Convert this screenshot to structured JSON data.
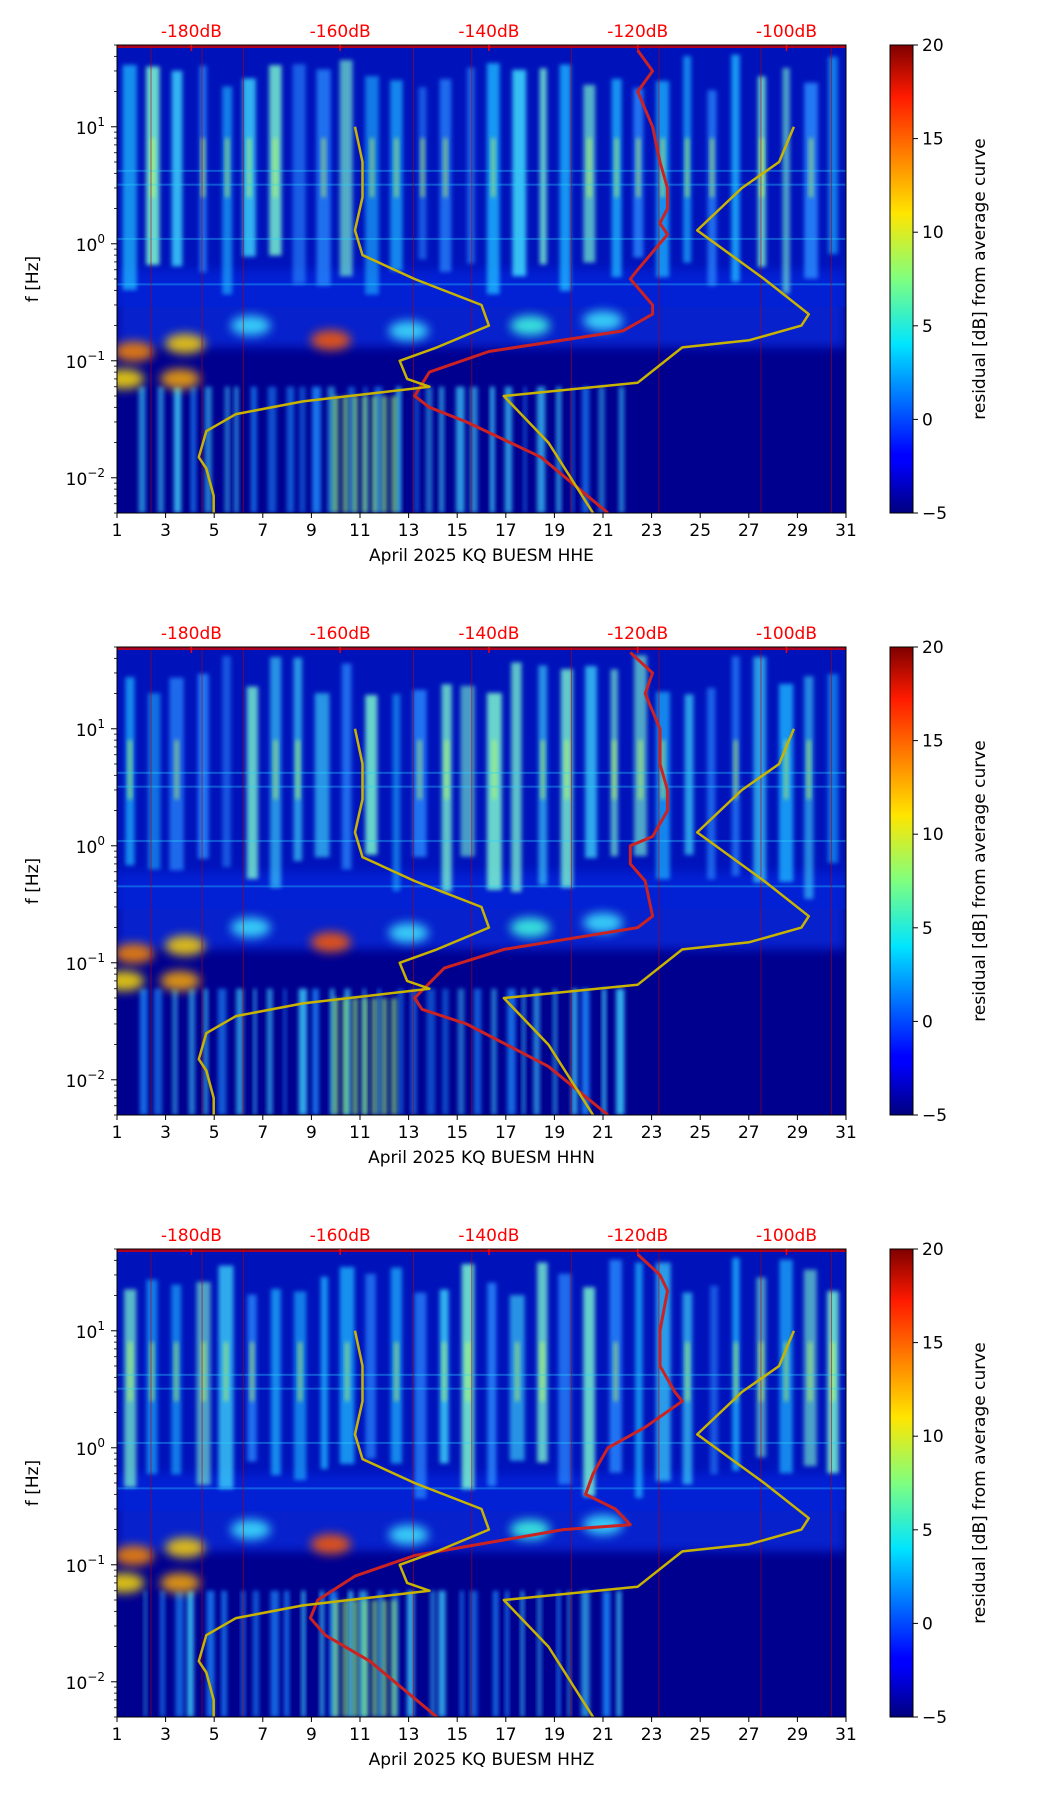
{
  "chart_data": [
    {
      "type": "heatmap",
      "xlabel": "April 2025 KQ BUESM  HHE",
      "ylabel": "f [Hz]",
      "x_ticks": [
        "1",
        "3",
        "5",
        "7",
        "9",
        "11",
        "13",
        "15",
        "17",
        "19",
        "21",
        "23",
        "25",
        "27",
        "29",
        "31"
      ],
      "xlim": [
        1,
        31
      ],
      "y_scale": "log",
      "y_ticks": [
        "10^-2",
        "10^-1",
        "10^0",
        "10^1"
      ],
      "ylim": [
        0.005,
        50
      ],
      "top_axis_ticks": [
        "-180dB",
        "-160dB",
        "-140dB",
        "-120dB",
        "-100dB"
      ],
      "colorbar": {
        "label": "residual [dB] from average curve",
        "ticks": [
          "-5",
          "0",
          "5",
          "10",
          "15",
          "20"
        ],
        "range": [
          -5,
          20
        ]
      },
      "curves": [
        {
          "color": "#cc2222",
          "db_at_f": [
            [
              -120,
              45
            ],
            [
              -118,
              30
            ],
            [
              -120,
              20
            ],
            [
              -118,
              10
            ],
            [
              -117,
              5
            ],
            [
              -116,
              3
            ],
            [
              -116,
              2
            ],
            [
              -117,
              1.5
            ],
            [
              -116,
              1.2
            ],
            [
              -120,
              0.6
            ],
            [
              -121,
              0.5
            ],
            [
              -118,
              0.3
            ],
            [
              -118,
              0.25
            ],
            [
              -122,
              0.18
            ],
            [
              -140,
              0.12
            ],
            [
              -148,
              0.08
            ],
            [
              -150,
              0.05
            ],
            [
              -148,
              0.04
            ],
            [
              -143,
              0.03
            ],
            [
              -133,
              0.015
            ],
            [
              -124,
              0.005
            ]
          ]
        },
        {
          "color": "#c8b400",
          "db_at_f": [
            [
              -158,
              10
            ],
            [
              -157,
              5
            ],
            [
              -157,
              2.5
            ],
            [
              -158,
              1.3
            ],
            [
              -157,
              0.8
            ],
            [
              -150,
              0.5
            ],
            [
              -141,
              0.3
            ],
            [
              -140,
              0.2
            ],
            [
              -147,
              0.13
            ],
            [
              -152,
              0.1
            ],
            [
              -151,
              0.07
            ],
            [
              -148,
              0.06
            ],
            [
              -165,
              0.045
            ],
            [
              -174,
              0.035
            ],
            [
              -178,
              0.025
            ],
            [
              -179,
              0.015
            ],
            [
              -178,
              0.012
            ],
            [
              -177,
              0.007
            ],
            [
              -177,
              0.005
            ]
          ]
        },
        {
          "color": "#c8b400",
          "db_at_f": [
            [
              -99,
              10
            ],
            [
              -101,
              5
            ],
            [
              -106,
              3
            ],
            [
              -112,
              1.3
            ],
            [
              -103,
              0.5
            ],
            [
              -97,
              0.25
            ],
            [
              -98,
              0.2
            ],
            [
              -105,
              0.15
            ],
            [
              -114,
              0.13
            ],
            [
              -120,
              0.065
            ],
            [
              -138,
              0.05
            ],
            [
              -132,
              0.02
            ],
            [
              -126,
              0.005
            ]
          ]
        }
      ]
    },
    {
      "type": "heatmap",
      "xlabel": "April 2025 KQ BUESM  HHN",
      "ylabel": "f [Hz]",
      "x_ticks": [
        "1",
        "3",
        "5",
        "7",
        "9",
        "11",
        "13",
        "15",
        "17",
        "19",
        "21",
        "23",
        "25",
        "27",
        "29",
        "31"
      ],
      "xlim": [
        1,
        31
      ],
      "y_scale": "log",
      "y_ticks": [
        "10^-2",
        "10^-1",
        "10^0",
        "10^1"
      ],
      "ylim": [
        0.005,
        50
      ],
      "top_axis_ticks": [
        "-180dB",
        "-160dB",
        "-140dB",
        "-120dB",
        "-100dB"
      ],
      "colorbar": {
        "label": "residual [dB] from average curve",
        "ticks": [
          "-5",
          "0",
          "5",
          "10",
          "15",
          "20"
        ],
        "range": [
          -5,
          20
        ]
      },
      "curves": [
        {
          "color": "#cc2222",
          "db_at_f": [
            [
              -121,
              45
            ],
            [
              -118,
              30
            ],
            [
              -119,
              20
            ],
            [
              -117,
              10
            ],
            [
              -117,
              5
            ],
            [
              -116,
              3
            ],
            [
              -116,
              2
            ],
            [
              -118,
              1.2
            ],
            [
              -121,
              1.0
            ],
            [
              -121,
              0.7
            ],
            [
              -119,
              0.5
            ],
            [
              -118,
              0.25
            ],
            [
              -120,
              0.2
            ],
            [
              -138,
              0.13
            ],
            [
              -146,
              0.09
            ],
            [
              -150,
              0.05
            ],
            [
              -149,
              0.04
            ],
            [
              -143,
              0.03
            ],
            [
              -132,
              0.013
            ],
            [
              -124,
              0.005
            ]
          ]
        },
        {
          "color": "#c8b400",
          "db_at_f": [
            [
              -158,
              10
            ],
            [
              -157,
              5
            ],
            [
              -157,
              2.5
            ],
            [
              -158,
              1.3
            ],
            [
              -157,
              0.8
            ],
            [
              -150,
              0.5
            ],
            [
              -141,
              0.3
            ],
            [
              -140,
              0.2
            ],
            [
              -147,
              0.13
            ],
            [
              -152,
              0.1
            ],
            [
              -151,
              0.07
            ],
            [
              -148,
              0.06
            ],
            [
              -165,
              0.045
            ],
            [
              -174,
              0.035
            ],
            [
              -178,
              0.025
            ],
            [
              -179,
              0.015
            ],
            [
              -178,
              0.012
            ],
            [
              -177,
              0.007
            ],
            [
              -177,
              0.005
            ]
          ]
        },
        {
          "color": "#c8b400",
          "db_at_f": [
            [
              -99,
              10
            ],
            [
              -101,
              5
            ],
            [
              -106,
              3
            ],
            [
              -112,
              1.3
            ],
            [
              -103,
              0.5
            ],
            [
              -97,
              0.25
            ],
            [
              -98,
              0.2
            ],
            [
              -105,
              0.15
            ],
            [
              -114,
              0.13
            ],
            [
              -120,
              0.065
            ],
            [
              -138,
              0.05
            ],
            [
              -132,
              0.02
            ],
            [
              -126,
              0.005
            ]
          ]
        }
      ]
    },
    {
      "type": "heatmap",
      "xlabel": "April 2025 KQ BUESM  HHZ",
      "ylabel": "f [Hz]",
      "x_ticks": [
        "1",
        "3",
        "5",
        "7",
        "9",
        "11",
        "13",
        "15",
        "17",
        "19",
        "21",
        "23",
        "25",
        "27",
        "29",
        "31"
      ],
      "xlim": [
        1,
        31
      ],
      "y_scale": "log",
      "y_ticks": [
        "10^-2",
        "10^-1",
        "10^0",
        "10^1"
      ],
      "ylim": [
        0.005,
        50
      ],
      "top_axis_ticks": [
        "-180dB",
        "-160dB",
        "-140dB",
        "-120dB",
        "-100dB"
      ],
      "colorbar": {
        "label": "residual [dB] from average curve",
        "ticks": [
          "-5",
          "0",
          "5",
          "10",
          "15",
          "20"
        ],
        "range": [
          -5,
          20
        ]
      },
      "curves": [
        {
          "color": "#cc2222",
          "db_at_f": [
            [
              -120,
              45
            ],
            [
              -117,
              30
            ],
            [
              -116,
              22
            ],
            [
              -117,
              10
            ],
            [
              -117,
              5
            ],
            [
              -115,
              3
            ],
            [
              -114,
              2.5
            ],
            [
              -119,
              1.5
            ],
            [
              -124,
              1.0
            ],
            [
              -126,
              0.6
            ],
            [
              -127,
              0.4
            ],
            [
              -123,
              0.3
            ],
            [
              -121,
              0.22
            ],
            [
              -130,
              0.2
            ],
            [
              -150,
              0.12
            ],
            [
              -158,
              0.08
            ],
            [
              -163,
              0.05
            ],
            [
              -164,
              0.035
            ],
            [
              -162,
              0.025
            ],
            [
              -156,
              0.015
            ],
            [
              -147,
              0.005
            ]
          ]
        },
        {
          "color": "#c8b400",
          "db_at_f": [
            [
              -158,
              10
            ],
            [
              -157,
              5
            ],
            [
              -157,
              2.5
            ],
            [
              -158,
              1.3
            ],
            [
              -157,
              0.8
            ],
            [
              -150,
              0.5
            ],
            [
              -141,
              0.3
            ],
            [
              -140,
              0.2
            ],
            [
              -147,
              0.13
            ],
            [
              -152,
              0.1
            ],
            [
              -151,
              0.07
            ],
            [
              -148,
              0.06
            ],
            [
              -165,
              0.045
            ],
            [
              -174,
              0.035
            ],
            [
              -178,
              0.025
            ],
            [
              -179,
              0.015
            ],
            [
              -178,
              0.012
            ],
            [
              -177,
              0.007
            ],
            [
              -177,
              0.005
            ]
          ]
        },
        {
          "color": "#c8b400",
          "db_at_f": [
            [
              -99,
              10
            ],
            [
              -101,
              5
            ],
            [
              -106,
              3
            ],
            [
              -112,
              1.3
            ],
            [
              -103,
              0.5
            ],
            [
              -97,
              0.25
            ],
            [
              -98,
              0.2
            ],
            [
              -105,
              0.15
            ],
            [
              -114,
              0.13
            ],
            [
              -120,
              0.065
            ],
            [
              -138,
              0.05
            ],
            [
              -132,
              0.02
            ],
            [
              -126,
              0.005
            ]
          ]
        }
      ]
    }
  ]
}
